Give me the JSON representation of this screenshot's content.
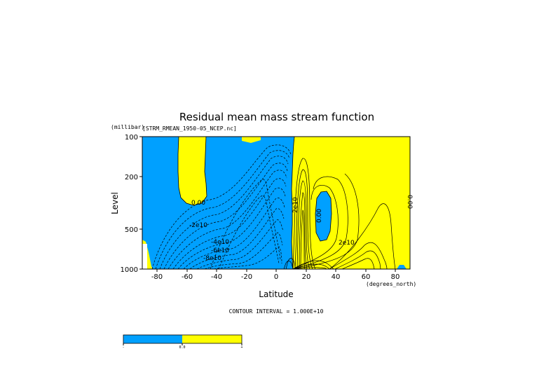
{
  "chart_data": {
    "type": "heatmap",
    "title": "Residual mean mass stream function",
    "subtitle": "[STRM_RMEAN_1950-05_NCEP.nc]",
    "xlabel": "Latitude",
    "x_units": "(degrees_north)",
    "ylabel": "Level",
    "y_units": "(millibar)",
    "xlim": [
      -90,
      90
    ],
    "ylim": [
      1000,
      100
    ],
    "y_scale": "log",
    "x_ticks": [
      -80,
      -60,
      -40,
      -20,
      0,
      20,
      40,
      60,
      80
    ],
    "y_ticks": [
      100,
      200,
      500,
      1000
    ],
    "contour_interval_text": "CONTOUR INTERVAL = 1.000E+10",
    "contour_labels": [
      "0.00",
      "-2e10",
      "-4e10",
      "-6e10",
      "-8e10",
      "2e10",
      "0.00",
      "2e10",
      "0.00"
    ],
    "fill_colors": {
      "negative": "#00a0ff",
      "positive": "#ffff00"
    },
    "colorbar": {
      "ticks": [
        "-",
        "0.0",
        "+"
      ]
    }
  }
}
